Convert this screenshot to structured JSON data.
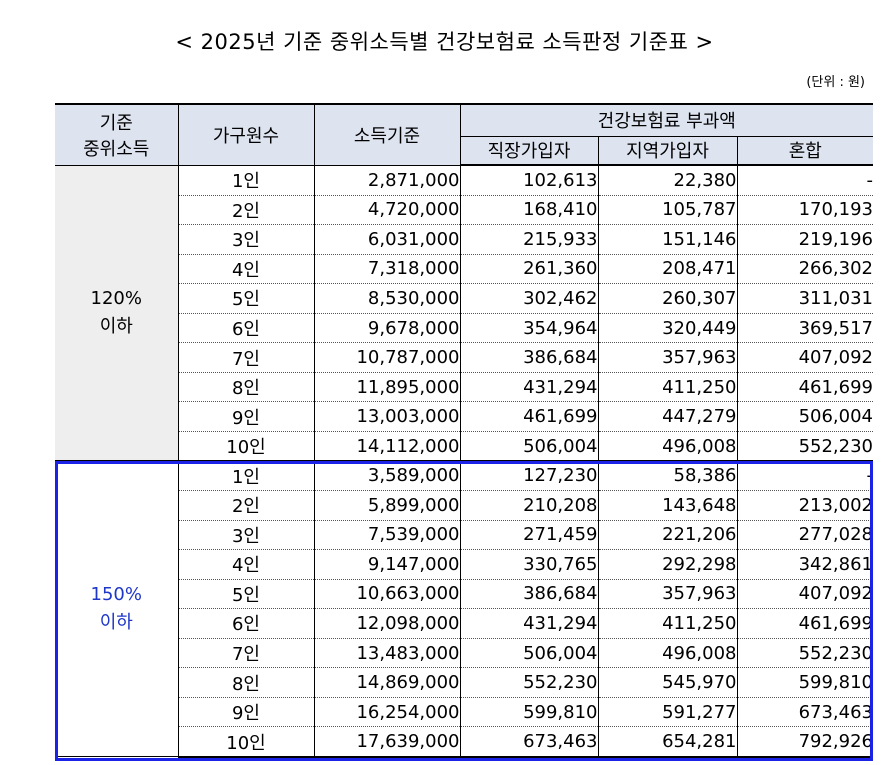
{
  "title": "< 2025년 기준 중위소득별 건강보험료 소득판정 기준표 >",
  "unit": "(단위 : 원)",
  "headers": {
    "median_line1": "기준",
    "median_line2": "중위소득",
    "household": "가구원수",
    "income": "소득기준",
    "premium": "건강보험료 부과액",
    "employee": "직장가입자",
    "regional": "지역가입자",
    "mixed": "혼합"
  },
  "groups": [
    {
      "label_line1": "120%",
      "label_line2": "이하",
      "rows": [
        {
          "household": "1인",
          "income": "2,871,000",
          "employee": "102,613",
          "regional": "22,380",
          "mixed": "-"
        },
        {
          "household": "2인",
          "income": "4,720,000",
          "employee": "168,410",
          "regional": "105,787",
          "mixed": "170,193"
        },
        {
          "household": "3인",
          "income": "6,031,000",
          "employee": "215,933",
          "regional": "151,146",
          "mixed": "219,196"
        },
        {
          "household": "4인",
          "income": "7,318,000",
          "employee": "261,360",
          "regional": "208,471",
          "mixed": "266,302"
        },
        {
          "household": "5인",
          "income": "8,530,000",
          "employee": "302,462",
          "regional": "260,307",
          "mixed": "311,031"
        },
        {
          "household": "6인",
          "income": "9,678,000",
          "employee": "354,964",
          "regional": "320,449",
          "mixed": "369,517"
        },
        {
          "household": "7인",
          "income": "10,787,000",
          "employee": "386,684",
          "regional": "357,963",
          "mixed": "407,092"
        },
        {
          "household": "8인",
          "income": "11,895,000",
          "employee": "431,294",
          "regional": "411,250",
          "mixed": "461,699"
        },
        {
          "household": "9인",
          "income": "13,003,000",
          "employee": "461,699",
          "regional": "447,279",
          "mixed": "506,004"
        },
        {
          "household": "10인",
          "income": "14,112,000",
          "employee": "506,004",
          "regional": "496,008",
          "mixed": "552,230"
        }
      ]
    },
    {
      "label_line1": "150%",
      "label_line2": "이하",
      "rows": [
        {
          "household": "1인",
          "income": "3,589,000",
          "employee": "127,230",
          "regional": "58,386",
          "mixed": "-"
        },
        {
          "household": "2인",
          "income": "5,899,000",
          "employee": "210,208",
          "regional": "143,648",
          "mixed": "213,002"
        },
        {
          "household": "3인",
          "income": "7,539,000",
          "employee": "271,459",
          "regional": "221,206",
          "mixed": "277,028"
        },
        {
          "household": "4인",
          "income": "9,147,000",
          "employee": "330,765",
          "regional": "292,298",
          "mixed": "342,861"
        },
        {
          "household": "5인",
          "income": "10,663,000",
          "employee": "386,684",
          "regional": "357,963",
          "mixed": "407,092"
        },
        {
          "household": "6인",
          "income": "12,098,000",
          "employee": "431,294",
          "regional": "411,250",
          "mixed": "461,699"
        },
        {
          "household": "7인",
          "income": "13,483,000",
          "employee": "506,004",
          "regional": "496,008",
          "mixed": "552,230"
        },
        {
          "household": "8인",
          "income": "14,869,000",
          "employee": "552,230",
          "regional": "545,970",
          "mixed": "599,810"
        },
        {
          "household": "9인",
          "income": "16,254,000",
          "employee": "599,810",
          "regional": "591,277",
          "mixed": "673,463"
        },
        {
          "household": "10인",
          "income": "17,639,000",
          "employee": "673,463",
          "regional": "654,281",
          "mixed": "792,926"
        }
      ]
    }
  ],
  "colors": {
    "header_bg": "#dde4f0",
    "group1_bg": "#eeeeee",
    "highlight_border": "#1a23e6",
    "group2_text": "#1f37c8"
  }
}
